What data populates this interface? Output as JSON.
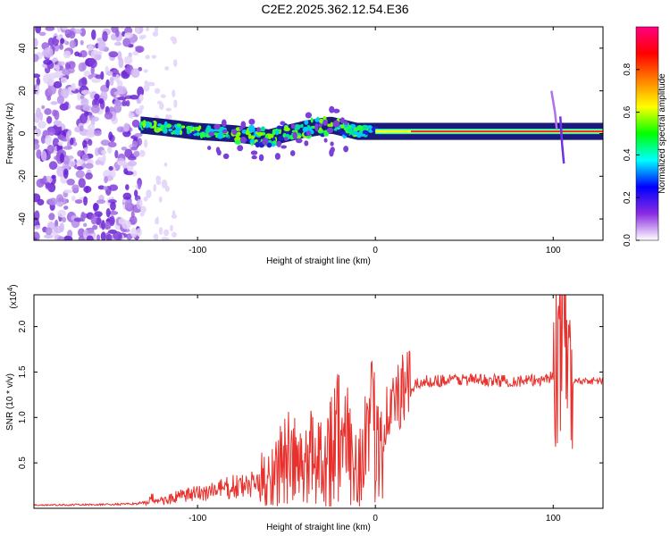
{
  "title": "C2E2.2025.362.12.54.E36",
  "chart_data": [
    {
      "type": "heatmap",
      "xlabel": "Height of straight line (km)",
      "ylabel": "Frequency (Hz)",
      "xlim": [
        -192,
        128
      ],
      "ylim": [
        -50,
        50
      ],
      "x_ticks": [
        -100,
        0,
        100
      ],
      "y_ticks": [
        -40,
        -20,
        0,
        20,
        40
      ],
      "x_tick_labels": [
        "-100",
        "0",
        "100"
      ],
      "y_tick_labels": [
        "-40",
        "-20",
        "0",
        "20",
        "40"
      ],
      "colorbar": {
        "label": "Normalized spectral amplitude",
        "range": [
          0,
          1
        ],
        "ticks": [
          0.0,
          0.2,
          0.4,
          0.6,
          0.8
        ],
        "tick_labels": [
          "0.0",
          "0.2",
          "0.4",
          "0.6",
          "0.8"
        ],
        "colors": [
          "#ffffff",
          "#8a2be2",
          "#0000ff",
          "#00ffff",
          "#00ff00",
          "#ffff00",
          "#ff8000",
          "#ff0000",
          "#ff0080"
        ]
      },
      "ridge_line": {
        "description_values_x": [
          -132,
          -120,
          -100,
          -80,
          -60,
          -40,
          -25,
          -10,
          0,
          20,
          50,
          80,
          100,
          128
        ],
        "description_values_y": [
          4,
          3,
          1,
          0,
          -2,
          2,
          4,
          1,
          1,
          1,
          1,
          1,
          1,
          1
        ]
      }
    },
    {
      "type": "line",
      "xlabel": "Height of straight line (km)",
      "ylabel": "SNR (10 * v/v)",
      "multiplier": "(x10",
      "multiplier_exp": "4",
      "xlim": [
        -192,
        128
      ],
      "ylim": [
        0,
        23500
      ],
      "x_ticks": [
        -100,
        0,
        100
      ],
      "y_ticks": [
        5000,
        10000,
        15000,
        20000
      ],
      "x_tick_labels": [
        "-100",
        "0",
        "100"
      ],
      "y_tick_labels": [
        "0.5",
        "1.0",
        "1.5",
        "2.0"
      ],
      "series": [
        {
          "name": "SNR",
          "color": "#e8302c",
          "x": [
            -192,
            -160,
            -140,
            -130,
            -125,
            -120,
            -110,
            -100,
            -90,
            -80,
            -70,
            -60,
            -55,
            -50,
            -45,
            -40,
            -35,
            -30,
            -25,
            -22,
            -20,
            -18,
            -15,
            -12,
            -10,
            -5,
            0,
            5,
            10,
            15,
            20,
            25,
            30,
            40,
            50,
            60,
            70,
            80,
            90,
            95,
            100,
            103,
            105,
            107,
            109,
            111,
            115,
            120,
            128
          ],
          "values": [
            350,
            400,
            450,
            600,
            1100,
            800,
            1300,
            1600,
            2000,
            2300,
            2500,
            3500,
            4500,
            5500,
            5000,
            4000,
            6500,
            5500,
            6500,
            9000,
            8000,
            6000,
            7000,
            5500,
            4500,
            7500,
            8500,
            10000,
            11500,
            12500,
            13200,
            13800,
            14000,
            14100,
            14200,
            14100,
            14050,
            14000,
            14050,
            14300,
            14500,
            17000,
            20000,
            19000,
            14500,
            13900,
            14000,
            14050,
            14000
          ]
        }
      ]
    }
  ]
}
